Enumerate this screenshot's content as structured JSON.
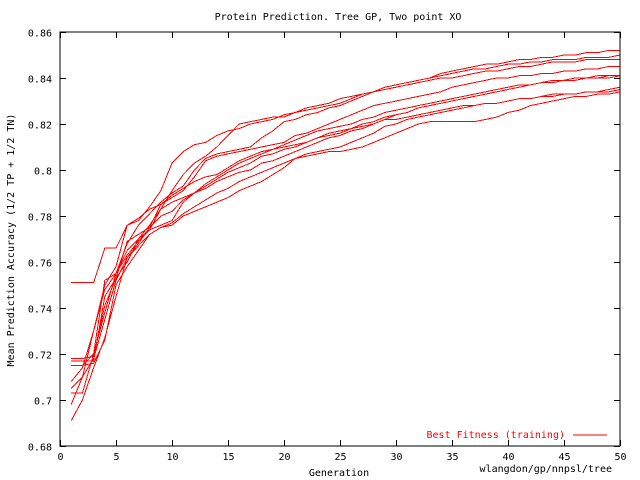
{
  "chart_data": {
    "type": "line",
    "title": "Protein Prediction. Tree GP, Two point XO",
    "xlabel": "Generation",
    "ylabel": "Mean Prediction Accuracy (1/2 TP + 1/2 TN)",
    "footer": "wlangdon/gp/nnpsl/tree",
    "xlim": [
      0,
      50
    ],
    "ylim": [
      0.68,
      0.86
    ],
    "xticks": [
      0,
      5,
      10,
      15,
      20,
      25,
      30,
      35,
      40,
      45,
      50
    ],
    "yticks": [
      0.68,
      0.7,
      0.72,
      0.74,
      0.76,
      0.78,
      0.8,
      0.82,
      0.84,
      0.86
    ],
    "grid": false,
    "legend": {
      "label": "Best Fitness (training)",
      "position": "bottom-right",
      "color": "#ff0000"
    },
    "line_color": "#ff0000",
    "x": [
      1,
      2,
      3,
      4,
      5,
      6,
      7,
      8,
      9,
      10,
      11,
      12,
      13,
      14,
      15,
      16,
      17,
      18,
      19,
      20,
      21,
      22,
      23,
      24,
      25,
      26,
      27,
      28,
      29,
      30,
      31,
      32,
      33,
      34,
      35,
      36,
      37,
      38,
      39,
      40,
      41,
      42,
      43,
      44,
      45,
      46,
      47,
      48,
      49,
      50
    ],
    "series": [
      {
        "values": [
          0.751,
          0.751,
          0.751,
          0.766,
          0.766,
          0.776,
          0.778,
          0.784,
          0.791,
          0.803,
          0.808,
          0.811,
          0.812,
          0.815,
          0.817,
          0.818,
          0.82,
          0.821,
          0.822,
          0.824,
          0.825,
          0.827,
          0.828,
          0.829,
          0.831,
          0.832,
          0.833,
          0.834,
          0.836,
          0.837,
          0.838,
          0.839,
          0.84,
          0.842,
          0.843,
          0.844,
          0.845,
          0.846,
          0.846,
          0.847,
          0.848,
          0.848,
          0.849,
          0.849,
          0.85,
          0.85,
          0.851,
          0.851,
          0.852,
          0.852
        ]
      },
      {
        "values": [
          0.718,
          0.718,
          0.719,
          0.741,
          0.753,
          0.76,
          0.77,
          0.776,
          0.783,
          0.791,
          0.798,
          0.803,
          0.806,
          0.81,
          0.815,
          0.82,
          0.821,
          0.822,
          0.823,
          0.823,
          0.825,
          0.826,
          0.827,
          0.828,
          0.829,
          0.831,
          0.833,
          0.834,
          0.836,
          0.837,
          0.838,
          0.839,
          0.84,
          0.841,
          0.842,
          0.843,
          0.844,
          0.844,
          0.845,
          0.846,
          0.846,
          0.847,
          0.847,
          0.848,
          0.848,
          0.848,
          0.849,
          0.849,
          0.849,
          0.85
        ]
      },
      {
        "values": [
          0.715,
          0.715,
          0.72,
          0.752,
          0.755,
          0.768,
          0.776,
          0.781,
          0.786,
          0.79,
          0.793,
          0.8,
          0.805,
          0.807,
          0.808,
          0.809,
          0.81,
          0.814,
          0.817,
          0.821,
          0.822,
          0.824,
          0.825,
          0.827,
          0.828,
          0.83,
          0.832,
          0.834,
          0.835,
          0.836,
          0.837,
          0.838,
          0.839,
          0.84,
          0.84,
          0.841,
          0.842,
          0.843,
          0.843,
          0.844,
          0.845,
          0.845,
          0.846,
          0.847,
          0.847,
          0.847,
          0.848,
          0.848,
          0.848,
          0.848
        ]
      },
      {
        "values": [
          0.708,
          0.714,
          0.73,
          0.75,
          0.758,
          0.776,
          0.779,
          0.783,
          0.785,
          0.788,
          0.791,
          0.797,
          0.804,
          0.806,
          0.807,
          0.808,
          0.809,
          0.81,
          0.811,
          0.812,
          0.815,
          0.816,
          0.818,
          0.82,
          0.822,
          0.824,
          0.826,
          0.828,
          0.829,
          0.83,
          0.831,
          0.832,
          0.833,
          0.834,
          0.836,
          0.837,
          0.838,
          0.839,
          0.84,
          0.84,
          0.841,
          0.841,
          0.842,
          0.842,
          0.843,
          0.843,
          0.844,
          0.844,
          0.845,
          0.845
        ]
      },
      {
        "values": [
          0.705,
          0.71,
          0.718,
          0.735,
          0.752,
          0.762,
          0.768,
          0.775,
          0.785,
          0.789,
          0.792,
          0.795,
          0.797,
          0.798,
          0.801,
          0.804,
          0.806,
          0.808,
          0.809,
          0.81,
          0.811,
          0.812,
          0.814,
          0.815,
          0.816,
          0.818,
          0.819,
          0.82,
          0.822,
          0.824,
          0.825,
          0.827,
          0.828,
          0.829,
          0.83,
          0.831,
          0.832,
          0.833,
          0.834,
          0.835,
          0.836,
          0.837,
          0.838,
          0.838,
          0.839,
          0.839,
          0.84,
          0.84,
          0.841,
          0.841
        ]
      },
      {
        "values": [
          0.717,
          0.717,
          0.717,
          0.745,
          0.753,
          0.769,
          0.772,
          0.775,
          0.78,
          0.782,
          0.787,
          0.79,
          0.794,
          0.797,
          0.8,
          0.803,
          0.805,
          0.807,
          0.809,
          0.811,
          0.813,
          0.815,
          0.817,
          0.818,
          0.819,
          0.82,
          0.822,
          0.823,
          0.825,
          0.826,
          0.827,
          0.828,
          0.829,
          0.83,
          0.831,
          0.832,
          0.833,
          0.834,
          0.835,
          0.836,
          0.837,
          0.837,
          0.838,
          0.839,
          0.839,
          0.84,
          0.84,
          0.841,
          0.841,
          0.841
        ]
      },
      {
        "values": [
          0.698,
          0.71,
          0.73,
          0.748,
          0.755,
          0.765,
          0.77,
          0.774,
          0.776,
          0.778,
          0.786,
          0.79,
          0.793,
          0.796,
          0.799,
          0.801,
          0.803,
          0.806,
          0.807,
          0.809,
          0.81,
          0.812,
          0.814,
          0.816,
          0.817,
          0.818,
          0.82,
          0.821,
          0.823,
          0.824,
          0.825,
          0.827,
          0.828,
          0.829,
          0.83,
          0.831,
          0.832,
          0.833,
          0.834,
          0.835,
          0.836,
          0.837,
          0.838,
          0.838,
          0.839,
          0.839,
          0.84,
          0.84,
          0.84,
          0.841
        ]
      },
      {
        "values": [
          0.703,
          0.703,
          0.72,
          0.738,
          0.755,
          0.763,
          0.769,
          0.774,
          0.783,
          0.786,
          0.788,
          0.79,
          0.792,
          0.795,
          0.797,
          0.799,
          0.8,
          0.803,
          0.804,
          0.806,
          0.808,
          0.81,
          0.812,
          0.814,
          0.815,
          0.817,
          0.818,
          0.82,
          0.822,
          0.822,
          0.823,
          0.824,
          0.825,
          0.826,
          0.827,
          0.828,
          0.828,
          0.829,
          0.829,
          0.83,
          0.831,
          0.831,
          0.832,
          0.832,
          0.833,
          0.833,
          0.834,
          0.834,
          0.835,
          0.836
        ]
      },
      {
        "values": [
          0.691,
          0.7,
          0.714,
          0.727,
          0.745,
          0.762,
          0.767,
          0.772,
          0.775,
          0.776,
          0.78,
          0.782,
          0.784,
          0.786,
          0.788,
          0.791,
          0.793,
          0.795,
          0.798,
          0.801,
          0.805,
          0.807,
          0.808,
          0.809,
          0.81,
          0.812,
          0.814,
          0.816,
          0.819,
          0.82,
          0.822,
          0.823,
          0.824,
          0.825,
          0.826,
          0.827,
          0.828,
          0.829,
          0.829,
          0.83,
          0.831,
          0.831,
          0.832,
          0.833,
          0.833,
          0.833,
          0.834,
          0.834,
          0.834,
          0.835
        ]
      },
      {
        "values": [
          0.715,
          0.715,
          0.716,
          0.726,
          0.75,
          0.758,
          0.765,
          0.772,
          0.775,
          0.777,
          0.781,
          0.784,
          0.787,
          0.79,
          0.792,
          0.795,
          0.797,
          0.799,
          0.801,
          0.803,
          0.805,
          0.806,
          0.807,
          0.808,
          0.808,
          0.809,
          0.81,
          0.812,
          0.814,
          0.816,
          0.818,
          0.82,
          0.821,
          0.821,
          0.821,
          0.821,
          0.821,
          0.822,
          0.823,
          0.825,
          0.826,
          0.828,
          0.829,
          0.83,
          0.831,
          0.832,
          0.832,
          0.833,
          0.833,
          0.834
        ]
      }
    ]
  }
}
